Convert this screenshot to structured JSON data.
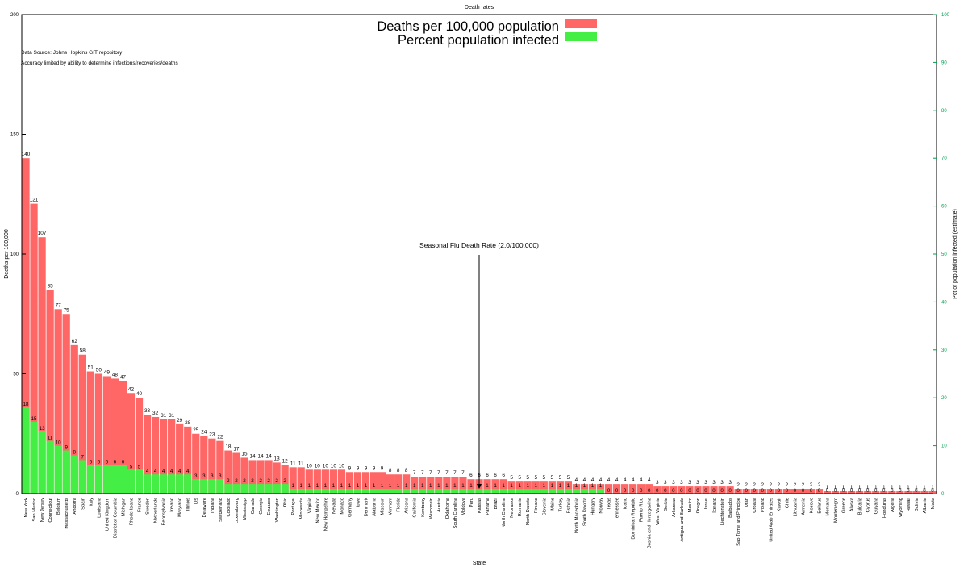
{
  "chart_data": {
    "type": "bar",
    "title": "Death rates",
    "xlabel": "State",
    "ylabel": "Deaths per 100,000",
    "y2label": "Pct of population infected (estimate)",
    "ylim": [
      0,
      200
    ],
    "y2lim": [
      0,
      100
    ],
    "yticks": [
      0,
      50,
      100,
      150,
      200
    ],
    "y2ticks": [
      0,
      10,
      20,
      30,
      40,
      50,
      60,
      70,
      80,
      90,
      100
    ],
    "grid": false,
    "legend_position": "top-center",
    "notes": [
      "Data Source: Johns Hopkins GIT repository",
      "Accuracy limited by ability to determine infections/recoveries/deaths"
    ],
    "annotation": {
      "text": "Seasonal Flu Death Rate (2.0/100,000)",
      "category": "Kansas",
      "value": 2.0
    },
    "colors": {
      "deaths": "#ff6666",
      "infected": "#44ee44",
      "axis_right": "#00a050"
    },
    "categories": [
      "New York",
      "San Marino",
      "New Jersey",
      "Connecticut",
      "Belgium",
      "Massachusetts",
      "Andorra",
      "Spain",
      "Italy",
      "Louisiana",
      "United Kingdom",
      "District of Columbia",
      "Michigan",
      "Rhode Island",
      "France",
      "Sweden",
      "Netherlands",
      "Pennsylvania",
      "Ireland",
      "Maryland",
      "Illinois",
      "US",
      "Delaware",
      "Indiana",
      "Switzerland",
      "Colorado",
      "Luxembourg",
      "Mississippi",
      "Canada",
      "Georgia",
      "Ecuador",
      "Washington",
      "Ohio",
      "Portugal",
      "Minnesota",
      "Virginia",
      "New Mexico",
      "New Hampshire",
      "Nevada",
      "Monaco",
      "Germany",
      "Iowa",
      "Denmark",
      "Alabama",
      "Missouri",
      "Vermont",
      "Florida",
      "Arizona",
      "California",
      "Kentucky",
      "Wisconsin",
      "Austria",
      "Oklahoma",
      "South Carolina",
      "Moldova",
      "Peru",
      "Kansas",
      "Panama",
      "Brazil",
      "North Carolina",
      "Nebraska",
      "Romania",
      "North Dakota",
      "Finland",
      "Slovenia",
      "Maine",
      "Turkey",
      "Estonia",
      "North Macedonia",
      "South Dakota",
      "Hungary",
      "Norway",
      "Texas",
      "Tennessee",
      "Idaho",
      "Dominican Republic",
      "Puerto Rico",
      "Bosnia and Herzegovina",
      "West Virginia",
      "Serbia",
      "Arkansas",
      "Antigua and Barbuda",
      "Mexico",
      "Oregon",
      "Israel",
      "Iceland",
      "Liechtenstein",
      "Barbados",
      "Sao Tome and Principe",
      "Utah",
      "Croatia",
      "Poland",
      "United Arab Emirates",
      "Kuwait",
      "Chile",
      "Lithuania",
      "Armenia",
      "Kosovo",
      "Belarus",
      "Montana",
      "Montenegro",
      "Greece",
      "Alaska",
      "Bulgaria",
      "Cyprus",
      "Guyana",
      "Honduras",
      "Algeria",
      "Wyoming",
      "Hawaii",
      "Bolivia",
      "Albania",
      "Malta"
    ],
    "series": [
      {
        "name": "Deaths per 100,000 population",
        "axis": "left",
        "values": [
          140,
          121,
          107,
          85,
          77,
          75,
          62,
          58,
          51,
          50,
          49,
          48,
          47,
          42,
          40,
          33,
          32,
          31,
          31,
          29,
          28,
          25,
          24,
          23,
          22,
          18,
          17,
          15,
          14,
          14,
          14,
          13,
          12,
          11,
          11,
          10,
          10,
          10,
          10,
          10,
          9,
          9,
          9,
          9,
          9,
          8,
          8,
          8,
          7,
          7,
          7,
          7,
          7,
          7,
          7,
          6,
          6,
          6,
          6,
          6,
          5,
          5,
          5,
          5,
          5,
          5,
          5,
          5,
          4,
          4,
          4,
          4,
          4,
          4,
          4,
          4,
          4,
          4,
          3,
          3,
          3,
          3,
          3,
          3,
          3,
          3,
          3,
          3,
          2,
          2,
          2,
          2,
          2,
          2,
          2,
          2,
          2,
          2,
          2,
          1,
          1,
          1,
          1,
          1,
          1,
          1,
          1,
          1,
          1,
          1,
          1,
          1,
          1
        ],
        "labels": [
          "140",
          "121",
          "107",
          "85",
          "77",
          "75",
          "62",
          "58",
          "51",
          "50",
          "49",
          "48",
          "47",
          "42",
          "40",
          "33",
          "32",
          "31",
          "31",
          "29",
          "28",
          "25",
          "24",
          "23",
          "22",
          "18",
          "17",
          "15",
          "14",
          "14",
          "14",
          "13",
          "12",
          "11",
          "11",
          "10",
          "10",
          "10",
          "10",
          "10",
          "9",
          "9",
          "9",
          "9",
          "9",
          "8",
          "8",
          "8",
          "7",
          "7",
          "7",
          "7",
          "7",
          "7",
          "7",
          "6",
          "6",
          "6",
          "6",
          "6",
          "5",
          "5",
          "5",
          "5",
          "5",
          "5",
          "5",
          "5",
          "4",
          "4",
          "4",
          "4",
          "4",
          "4",
          "4",
          "4",
          "4",
          "4",
          "3",
          "3",
          "3",
          "3",
          "3",
          "3",
          "3",
          "3",
          "3",
          "3",
          "2",
          "2",
          "2",
          "2",
          "2",
          "2",
          "2",
          "2",
          "2",
          "2",
          "2",
          "1",
          "1",
          "1",
          "1",
          "1",
          "1",
          "1",
          "1",
          "1",
          "1",
          "1",
          "1",
          "1",
          "1"
        ]
      },
      {
        "name": "Percent population infected",
        "axis": "right",
        "values": [
          18,
          15,
          13,
          11,
          10,
          9,
          8,
          7,
          6,
          6,
          6,
          6,
          6,
          5,
          5,
          4,
          4,
          4,
          4,
          4,
          4,
          3,
          3,
          3,
          3,
          2,
          2,
          2,
          2,
          2,
          2,
          2,
          2,
          1,
          1,
          1,
          1,
          1,
          1,
          1,
          1,
          1,
          1,
          1,
          1,
          1,
          1,
          1,
          1,
          1,
          1,
          1,
          1,
          1,
          1,
          1,
          1,
          1,
          1,
          1,
          1,
          1,
          1,
          1,
          1,
          1,
          1,
          1,
          1,
          1,
          1,
          1,
          0,
          0,
          0,
          0,
          0,
          0,
          0,
          0,
          0,
          0,
          0,
          0,
          0,
          0,
          0,
          0,
          0,
          0,
          0,
          0,
          0,
          0,
          0,
          0,
          0,
          0,
          0,
          0,
          0,
          0,
          0,
          0,
          0,
          0,
          0,
          0,
          0,
          0,
          0,
          0,
          0
        ],
        "labels": [
          "18",
          "15",
          "13",
          "11",
          "10",
          "9",
          "8",
          "7",
          "6",
          "6",
          "6",
          "6",
          "6",
          "5",
          "5",
          "4",
          "4",
          "4",
          "4",
          "4",
          "4",
          "3",
          "3",
          "3",
          "3",
          "2",
          "2",
          "2",
          "2",
          "2",
          "2",
          "2",
          "2",
          "1",
          "1",
          "1",
          "1",
          "1",
          "1",
          "1",
          "1",
          "1",
          "1",
          "1",
          "1",
          "1",
          "1",
          "1",
          "1",
          "1",
          "1",
          "1",
          "1",
          "1",
          "1",
          "1",
          "1",
          "1",
          "1",
          "1",
          "1",
          "1",
          "1",
          "1",
          "1",
          "1",
          "1",
          "1",
          "1",
          "1",
          "1",
          "1",
          "0",
          "0",
          "0",
          "0",
          "0",
          "0",
          "0",
          "0",
          "0",
          "0",
          "0",
          "0",
          "0",
          "0",
          "0",
          "0",
          "0",
          "0",
          "0",
          "0",
          "0",
          "0",
          "0",
          "0",
          "0",
          "0",
          "0",
          "0",
          "0",
          "0",
          "0",
          "0",
          "0",
          "0",
          "0",
          "0",
          "0",
          "0",
          "0",
          "0",
          "0"
        ]
      }
    ]
  }
}
